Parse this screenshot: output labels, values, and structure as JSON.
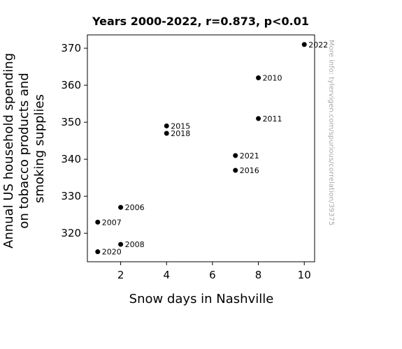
{
  "chart_data": {
    "type": "scatter",
    "title": "Years 2000-2022, r=0.873, p<0.01",
    "xlabel": "Snow days in Nashville",
    "ylabel": [
      "Annual US household spending",
      "on tobacco products and",
      "smoking supplies"
    ],
    "xlim": [
      0.55,
      10.45
    ],
    "ylim": [
      312.3,
      373.6
    ],
    "xticks": [
      2,
      4,
      6,
      8,
      10
    ],
    "yticks": [
      320,
      330,
      340,
      350,
      360,
      370
    ],
    "grid": false,
    "points": [
      {
        "x": 10,
        "y": 371,
        "label": "2022"
      },
      {
        "x": 8,
        "y": 362,
        "label": "2010"
      },
      {
        "x": 8,
        "y": 351,
        "label": "2011"
      },
      {
        "x": 4,
        "y": 349,
        "label": "2015"
      },
      {
        "x": 4,
        "y": 347,
        "label": "2018"
      },
      {
        "x": 7,
        "y": 341,
        "label": "2021"
      },
      {
        "x": 7,
        "y": 337,
        "label": "2016"
      },
      {
        "x": 2,
        "y": 327,
        "label": "2006"
      },
      {
        "x": 1,
        "y": 323,
        "label": "2007"
      },
      {
        "x": 2,
        "y": 317,
        "label": "2008"
      },
      {
        "x": 1,
        "y": 315,
        "label": "2020"
      }
    ],
    "watermark": "More info: tylervigen.com/spurious/correlation/39375"
  },
  "colors": {
    "point": "#000000",
    "watermark": "#aaaaaa"
  }
}
